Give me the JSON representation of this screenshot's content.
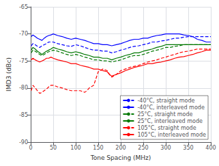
{
  "chart_data": {
    "type": "line",
    "xlabel": "Tone Spacing (MHz)",
    "ylabel": "IMD3 (dBc)",
    "xlim": [
      0,
      400
    ],
    "ylim": [
      -90,
      -65
    ],
    "xticks": [
      0,
      50,
      100,
      150,
      200,
      250,
      300,
      350,
      400
    ],
    "yticks": [
      -90,
      -85,
      -80,
      -75,
      -70,
      -65
    ],
    "grid": true,
    "legend": "lower right",
    "series": [
      {
        "name": "-40°C, straight mode",
        "color": "#0000FF",
        "line_style": "dashed",
        "x": [
          1,
          5,
          10,
          15,
          20,
          25,
          30,
          35,
          40,
          45,
          50,
          60,
          70,
          80,
          90,
          100,
          110,
          120,
          130,
          140,
          150,
          160,
          170,
          180,
          190,
          200,
          210,
          220,
          230,
          240,
          250,
          260,
          270,
          280,
          290,
          300,
          310,
          320,
          330,
          340,
          350,
          360,
          370,
          380,
          390,
          400
        ],
        "values": [
          -72.2,
          -71.8,
          -72.0,
          -72.3,
          -72.5,
          -72.2,
          -72.0,
          -71.8,
          -71.5,
          -71.5,
          -71.5,
          -71.8,
          -72.0,
          -72.2,
          -72.3,
          -72.0,
          -72.2,
          -72.5,
          -72.8,
          -73.0,
          -73.0,
          -73.2,
          -73.2,
          -73.5,
          -73.3,
          -73.0,
          -72.8,
          -72.5,
          -72.3,
          -72.2,
          -72.0,
          -71.8,
          -71.5,
          -71.5,
          -71.3,
          -71.2,
          -71.0,
          -70.8,
          -70.8,
          -70.6,
          -70.5,
          -70.5,
          -70.5,
          -70.5,
          -70.5,
          -70.5
        ]
      },
      {
        "name": "-40°C, interleaved mode",
        "color": "#0000FF",
        "line_style": "solid",
        "x": [
          1,
          5,
          10,
          15,
          20,
          25,
          30,
          35,
          40,
          45,
          50,
          60,
          70,
          80,
          90,
          100,
          110,
          120,
          130,
          140,
          150,
          160,
          170,
          180,
          190,
          200,
          210,
          220,
          230,
          240,
          250,
          260,
          270,
          280,
          290,
          300,
          310,
          320,
          330,
          340,
          350,
          360,
          370,
          380,
          390,
          400
        ],
        "values": [
          -70.5,
          -70.2,
          -70.5,
          -70.8,
          -71.0,
          -71.2,
          -70.8,
          -70.5,
          -70.3,
          -70.2,
          -70.0,
          -70.3,
          -70.5,
          -70.8,
          -71.0,
          -70.8,
          -71.0,
          -71.2,
          -71.5,
          -71.8,
          -71.8,
          -72.0,
          -72.0,
          -72.2,
          -72.0,
          -71.8,
          -71.5,
          -71.2,
          -71.0,
          -71.0,
          -70.8,
          -70.8,
          -70.5,
          -70.3,
          -70.2,
          -70.0,
          -70.0,
          -70.0,
          -70.0,
          -70.2,
          -70.3,
          -70.5,
          -71.0,
          -71.2,
          -71.5,
          -71.5
        ]
      },
      {
        "name": "25°C, straight mode",
        "color": "#007700",
        "line_style": "dashed",
        "x": [
          1,
          5,
          10,
          15,
          20,
          25,
          30,
          35,
          40,
          45,
          50,
          60,
          70,
          80,
          90,
          100,
          110,
          120,
          130,
          140,
          150,
          160,
          170,
          180,
          190,
          200,
          210,
          220,
          230,
          240,
          250,
          260,
          270,
          280,
          290,
          300,
          310,
          320,
          330,
          340,
          350,
          360,
          370,
          380,
          390,
          400
        ],
        "values": [
          -73.5,
          -73.0,
          -73.2,
          -73.5,
          -73.8,
          -74.0,
          -73.8,
          -73.5,
          -73.3,
          -73.2,
          -73.0,
          -73.2,
          -73.5,
          -73.8,
          -74.0,
          -73.8,
          -74.0,
          -74.3,
          -74.5,
          -74.8,
          -74.8,
          -75.0,
          -75.0,
          -75.2,
          -75.0,
          -74.8,
          -74.5,
          -74.2,
          -74.0,
          -74.0,
          -73.8,
          -73.5,
          -73.2,
          -73.0,
          -72.8,
          -72.5,
          -72.5,
          -72.3,
          -72.2,
          -72.0,
          -72.0,
          -72.0,
          -72.0,
          -72.0,
          -72.0,
          -72.0
        ]
      },
      {
        "name": "25°C, interleaved mode",
        "color": "#007700",
        "line_style": "solid",
        "x": [
          1,
          5,
          10,
          15,
          20,
          25,
          30,
          35,
          40,
          45,
          50,
          60,
          70,
          80,
          90,
          100,
          110,
          120,
          130,
          140,
          150,
          160,
          170,
          180,
          190,
          200,
          210,
          220,
          230,
          240,
          250,
          260,
          270,
          280,
          290,
          300,
          310,
          320,
          330,
          340,
          350,
          360,
          370,
          380,
          390,
          400
        ],
        "values": [
          -73.0,
          -72.5,
          -72.8,
          -73.2,
          -73.5,
          -73.8,
          -73.5,
          -73.2,
          -73.0,
          -72.8,
          -72.5,
          -72.8,
          -73.0,
          -73.3,
          -73.5,
          -73.3,
          -73.5,
          -73.8,
          -74.0,
          -74.3,
          -74.3,
          -74.5,
          -74.5,
          -74.8,
          -74.5,
          -74.3,
          -74.0,
          -73.8,
          -73.5,
          -73.5,
          -73.2,
          -73.0,
          -72.8,
          -72.5,
          -72.3,
          -72.0,
          -72.0,
          -72.0,
          -72.0,
          -72.0,
          -72.0,
          -72.0,
          -72.0,
          -72.0,
          -72.0,
          -72.0
        ]
      },
      {
        "name": "105°C, straight mode",
        "color": "#FF0000",
        "line_style": "dashed",
        "x": [
          1,
          5,
          10,
          15,
          20,
          25,
          30,
          35,
          40,
          45,
          50,
          60,
          70,
          80,
          90,
          100,
          110,
          120,
          125,
          130,
          140,
          150,
          160,
          170,
          175,
          180,
          190,
          200,
          210,
          220,
          230,
          240,
          250,
          260,
          270,
          280,
          290,
          300,
          310,
          320,
          330,
          340,
          350,
          360,
          370,
          380,
          390,
          400
        ],
        "values": [
          -80.5,
          -79.5,
          -80.0,
          -80.5,
          -81.0,
          -80.8,
          -80.5,
          -80.2,
          -79.8,
          -79.5,
          -79.5,
          -79.8,
          -80.0,
          -80.3,
          -80.5,
          -80.5,
          -80.5,
          -80.8,
          -80.5,
          -80.0,
          -79.5,
          -77.0,
          -76.5,
          -76.8,
          -77.5,
          -78.0,
          -77.5,
          -76.8,
          -76.5,
          -76.2,
          -76.0,
          -75.8,
          -75.5,
          -75.2,
          -75.0,
          -74.8,
          -74.5,
          -74.3,
          -74.0,
          -73.8,
          -73.5,
          -73.3,
          -73.2,
          -73.0,
          -72.8,
          -72.8,
          -72.8,
          -72.8
        ]
      },
      {
        "name": "105°C, interleaved mode",
        "color": "#FF0000",
        "line_style": "solid",
        "x": [
          1,
          5,
          10,
          15,
          20,
          25,
          30,
          35,
          40,
          45,
          50,
          60,
          70,
          80,
          90,
          100,
          110,
          120,
          130,
          140,
          150,
          160,
          170,
          175,
          180,
          190,
          200,
          210,
          220,
          230,
          240,
          250,
          260,
          270,
          280,
          290,
          300,
          310,
          320,
          330,
          340,
          350,
          360,
          370,
          380,
          390,
          400
        ],
        "values": [
          -74.8,
          -74.5,
          -74.8,
          -75.0,
          -75.2,
          -75.0,
          -74.8,
          -74.5,
          -74.5,
          -74.3,
          -74.5,
          -74.8,
          -75.0,
          -75.2,
          -75.5,
          -75.5,
          -75.8,
          -76.0,
          -76.2,
          -76.5,
          -76.5,
          -76.8,
          -77.0,
          -77.5,
          -77.8,
          -77.5,
          -77.2,
          -76.8,
          -76.5,
          -76.2,
          -76.0,
          -75.8,
          -75.5,
          -75.5,
          -75.3,
          -75.2,
          -75.0,
          -74.8,
          -74.5,
          -74.3,
          -74.2,
          -74.0,
          -73.8,
          -73.5,
          -73.3,
          -73.0,
          -73.0
        ]
      }
    ]
  }
}
